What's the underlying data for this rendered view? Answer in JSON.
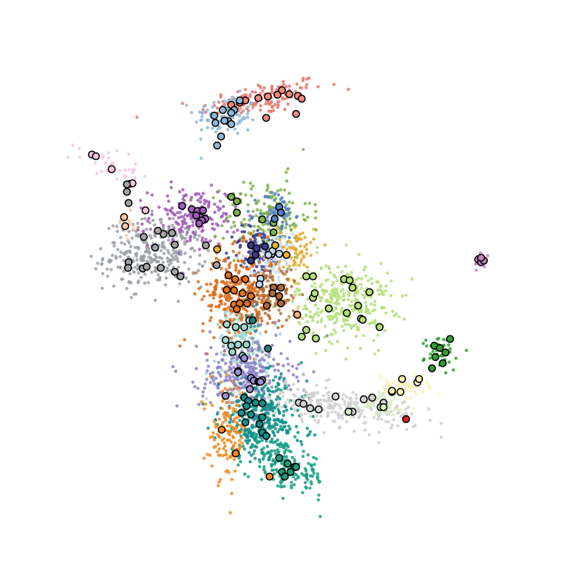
{
  "chart_data": {
    "type": "scatter",
    "title": "",
    "xlabel": "",
    "ylabel": "",
    "grid": false,
    "axes_visible": false,
    "legend": "none",
    "xlim": [
      0,
      100
    ],
    "ylim": [
      0,
      100
    ],
    "clusters": [
      {
        "color": "#e8756b",
        "label_color": "#f08a80",
        "center": [
          46.5,
          82.5
        ],
        "spread": [
          5.5,
          1.5
        ],
        "n": 140,
        "tilt": 0.18,
        "highlights": [
          [
            43.5,
            82.2
          ],
          [
            45.8,
            82.6
          ],
          [
            47.5,
            82.9
          ],
          [
            49.2,
            83.2
          ],
          [
            51.3,
            83.3
          ],
          [
            52.8,
            83.0
          ],
          [
            50.0,
            84.0
          ],
          [
            41.0,
            81.4
          ],
          [
            42.5,
            81.8
          ],
          [
            53.5,
            82.5
          ],
          [
            47.2,
            79.1
          ],
          [
            52.5,
            79.8
          ]
        ]
      },
      {
        "color": "#8fb7d9",
        "label_color": "#8fb7d9",
        "center": [
          40.0,
          79.5
        ],
        "spread": [
          2.8,
          1.8
        ],
        "n": 90,
        "tilt": 0.0,
        "highlights": [
          [
            38.0,
            79.5
          ],
          [
            40.5,
            78.5
          ],
          [
            41.5,
            80.5
          ],
          [
            39.5,
            80.5
          ],
          [
            42.5,
            82.2
          ],
          [
            38.2,
            78.2
          ],
          [
            41.0,
            78.0
          ],
          [
            39.2,
            75.8
          ],
          [
            38.5,
            74.2
          ],
          [
            41.0,
            80.0
          ],
          [
            39.8,
            78.6
          ]
        ]
      },
      {
        "color": "#f5c6e0",
        "label_color": "#f5c6e0",
        "center": [
          19.0,
          71.0
        ],
        "spread": [
          2.8,
          1.2
        ],
        "n": 35,
        "tilt": -0.3,
        "highlights": [
          [
            16.3,
            72.6
          ],
          [
            17.0,
            72.3
          ],
          [
            19.8,
            70.0
          ],
          [
            23.0,
            67.4
          ],
          [
            23.5,
            67.5
          ],
          [
            25.8,
            62.7
          ]
        ]
      },
      {
        "color": "#9aa0a6",
        "label_color": "#a3a3a3",
        "center": [
          27.5,
          55.0
        ],
        "spread": [
          4.5,
          3.0
        ],
        "n": 320,
        "tilt": 0.05,
        "highlights": [
          [
            22.5,
            66.0
          ],
          [
            22.5,
            67.3
          ],
          [
            22.8,
            64.0
          ],
          [
            28.0,
            59.1
          ],
          [
            29.0,
            58.5
          ],
          [
            30.5,
            58.7
          ],
          [
            31.0,
            56.6
          ],
          [
            25.5,
            58.0
          ],
          [
            27.5,
            56.1
          ],
          [
            22.8,
            53.5
          ],
          [
            22.7,
            52.5
          ],
          [
            25.3,
            52.4
          ],
          [
            26.0,
            52.7
          ],
          [
            28.5,
            52.5
          ],
          [
            31.0,
            51.8
          ],
          [
            32.0,
            51.0
          ],
          [
            36.5,
            56.5
          ],
          [
            38.4,
            53.0
          ]
        ]
      },
      {
        "color": "#f6c8a8",
        "label_color": "#f6c8a8",
        "center": [
          22.5,
          60.5
        ],
        "spread": [
          0.8,
          1.5
        ],
        "n": 14,
        "tilt": 0.0,
        "highlights": [
          [
            22.0,
            61.5
          ],
          [
            22.2,
            59.9
          ]
        ]
      },
      {
        "color": "#a05cb8",
        "label_color": "#a05cb8",
        "center": [
          34.5,
          61.5
        ],
        "spread": [
          4.0,
          2.6
        ],
        "n": 180,
        "tilt": 0.0,
        "highlights": [
          [
            32.3,
            63.5
          ],
          [
            34.0,
            62.9
          ],
          [
            35.0,
            62.6
          ],
          [
            36.0,
            62.7
          ],
          [
            35.5,
            61.5
          ],
          [
            34.8,
            61.8
          ],
          [
            36.4,
            61.2
          ],
          [
            35.8,
            60.9
          ],
          [
            35.3,
            60.4
          ]
        ]
      },
      {
        "color": "#7bb34a",
        "label_color": "#7bb34a",
        "center": [
          47.5,
          61.5
        ],
        "spread": [
          3.8,
          3.5
        ],
        "n": 170,
        "tilt": 0.0,
        "highlights": [
          [
            41.0,
            65.1
          ],
          [
            42.0,
            64.3
          ],
          [
            42.0,
            62.3
          ],
          [
            46.5,
            61.1
          ],
          [
            48.5,
            60.5
          ],
          [
            48.5,
            58.8
          ]
        ]
      },
      {
        "color": "#4d7fc4",
        "label_color": "#4d7fc4",
        "center": [
          49.0,
          62.0
        ],
        "spread": [
          1.6,
          2.2
        ],
        "n": 60,
        "tilt": 0.0,
        "highlights": [
          [
            49.5,
            63.3
          ],
          [
            49.8,
            62.3
          ],
          [
            48.7,
            61.2
          ]
        ]
      },
      {
        "color": "#3b3a8f",
        "label_color": "#3b3a8f",
        "center": [
          45.5,
          55.5
        ],
        "spread": [
          2.2,
          2.2
        ],
        "n": 90,
        "tilt": 0.0,
        "highlights": [
          [
            44.5,
            56.5
          ],
          [
            45.5,
            56.0
          ],
          [
            47.0,
            56.3
          ],
          [
            44.5,
            53.8
          ],
          [
            45.3,
            54.8
          ]
        ]
      },
      {
        "color": "#c7d9ef",
        "label_color": "#c7d9ef",
        "center": [
          48.5,
          54.5
        ],
        "spread": [
          2.4,
          2.0
        ],
        "n": 90,
        "tilt": 0.0,
        "highlights": [
          [
            48.2,
            55.0
          ],
          [
            49.5,
            55.0
          ],
          [
            48.3,
            55.5
          ],
          [
            47.6,
            54.8
          ],
          [
            46.2,
            50.6
          ],
          [
            46.0,
            49.6
          ]
        ]
      },
      {
        "color": "#e3a92a",
        "label_color": "#f0b429",
        "center": [
          52.5,
          55.5
        ],
        "spread": [
          1.6,
          2.5
        ],
        "n": 70,
        "tilt": 0.0,
        "highlights": [
          [
            50.8,
            54.8
          ],
          [
            38.5,
            55.8
          ],
          [
            48.8,
            56.5
          ]
        ]
      },
      {
        "color": "#dd6a15",
        "label_color": "#e2711c",
        "center": [
          42.5,
          47.5
        ],
        "spread": [
          3.3,
          4.2
        ],
        "n": 320,
        "tilt": 0.0,
        "highlights": [
          [
            40.5,
            51.2
          ],
          [
            41.7,
            50.5
          ],
          [
            43.5,
            50.5
          ],
          [
            41.5,
            48.5
          ],
          [
            43.0,
            48.0
          ],
          [
            40.2,
            48.6
          ],
          [
            44.5,
            47.5
          ],
          [
            41.5,
            46.0
          ],
          [
            42.5,
            46.2
          ],
          [
            43.8,
            46.2
          ],
          [
            42.0,
            45.2
          ]
        ]
      },
      {
        "color": "#b06a3a",
        "label_color": "#b06a3a",
        "center": [
          48.0,
          47.8
        ],
        "spread": [
          2.2,
          2.4
        ],
        "n": 110,
        "tilt": 0.0,
        "highlights": [
          [
            48.5,
            49.0
          ],
          [
            49.8,
            49.0
          ],
          [
            48.3,
            48.0
          ],
          [
            49.5,
            47.5
          ],
          [
            47.3,
            45.8
          ],
          [
            49.8,
            46.2
          ]
        ]
      },
      {
        "color": "#b5df7a",
        "label_color": "#b5df7a",
        "center": [
          61.0,
          46.5
        ],
        "spread": [
          4.2,
          3.5
        ],
        "n": 330,
        "tilt": 0.0,
        "highlights": [
          [
            54.3,
            51.0
          ],
          [
            55.5,
            51.0
          ],
          [
            61.0,
            50.5
          ],
          [
            62.0,
            50.3
          ],
          [
            62.5,
            49.0
          ],
          [
            65.5,
            48.2
          ],
          [
            55.5,
            47.2
          ],
          [
            55.8,
            48.0
          ],
          [
            58.3,
            45.3
          ],
          [
            61.5,
            44.5
          ],
          [
            63.5,
            45.8
          ],
          [
            64.0,
            43.5
          ],
          [
            64.3,
            43.3
          ],
          [
            67.3,
            42.0
          ],
          [
            54.3,
            41.5
          ],
          [
            53.5,
            40.3
          ],
          [
            56.0,
            40.0
          ],
          [
            52.7,
            44.2
          ]
        ]
      },
      {
        "color": "#f6c8a8",
        "label_color": "#f9b27a",
        "center": [
          52.8,
          44.2
        ],
        "spread": [
          0.6,
          0.6
        ],
        "n": 6,
        "tilt": 0.0,
        "highlights": [
          [
            52.7,
            44.2
          ]
        ]
      },
      {
        "color": "#9ed8cf",
        "label_color": "#9ed8cf",
        "center": [
          43.0,
          39.0
        ],
        "spread": [
          2.4,
          3.0
        ],
        "n": 150,
        "tilt": 0.0,
        "highlights": [
          [
            40.2,
            42.5
          ],
          [
            41.8,
            42.0
          ],
          [
            43.3,
            42.0
          ],
          [
            44.2,
            43.2
          ],
          [
            40.0,
            39.7
          ],
          [
            41.0,
            38.7
          ],
          [
            42.2,
            38.9
          ],
          [
            43.7,
            38.9
          ],
          [
            41.2,
            37.6
          ],
          [
            43.0,
            36.9
          ]
        ]
      },
      {
        "color": "#2a8a8a",
        "label_color": "#1f7f7f",
        "center": [
          45.0,
          43.5
        ],
        "spread": [
          0.8,
          2.2
        ],
        "n": 10,
        "tilt": 0.0,
        "highlights": [
          [
            44.8,
            43.2
          ],
          [
            47.5,
            38.2
          ]
        ]
      },
      {
        "color": "#8d80c7",
        "label_color": "#9d8fd1",
        "center": [
          43.5,
          33.5
        ],
        "spread": [
          4.0,
          3.2
        ],
        "n": 300,
        "tilt": 0.0,
        "highlights": [
          [
            43.3,
            36.5
          ],
          [
            42.2,
            34.2
          ],
          [
            42.2,
            34.0
          ],
          [
            44.5,
            33.0
          ],
          [
            45.0,
            32.5
          ],
          [
            45.8,
            32.3
          ],
          [
            46.0,
            32.3
          ],
          [
            46.5,
            32.6
          ],
          [
            46.2,
            32.3
          ],
          [
            44.3,
            31.0
          ],
          [
            40.0,
            29.8
          ]
        ]
      },
      {
        "color": "#0a8f85",
        "label_color": "#13918a",
        "center": [
          46.5,
          25.5
        ],
        "spread": [
          3.8,
          3.6
        ],
        "n": 360,
        "tilt": 0.0,
        "highlights": [
          [
            43.3,
            29.5
          ],
          [
            44.0,
            28.9
          ],
          [
            45.3,
            28.6
          ],
          [
            46.5,
            28.5
          ],
          [
            43.7,
            28.0
          ],
          [
            42.8,
            26.8
          ],
          [
            44.5,
            26.5
          ],
          [
            46.5,
            26.0
          ],
          [
            46.0,
            24.8
          ],
          [
            43.5,
            25.1
          ],
          [
            46.5,
            23.3
          ],
          [
            47.2,
            22.7
          ]
        ]
      },
      {
        "color": "#15a085",
        "label_color": "#1c9e77",
        "center": [
          51.0,
          17.0
        ],
        "spread": [
          3.5,
          2.0
        ],
        "n": 150,
        "tilt": -0.3,
        "highlights": [
          [
            49.5,
            18.8
          ],
          [
            51.0,
            17.8
          ],
          [
            52.2,
            17.2
          ],
          [
            52.5,
            17.2
          ],
          [
            51.5,
            16.3
          ],
          [
            50.0,
            16.3
          ],
          [
            50.5,
            15.5
          ]
        ]
      },
      {
        "color": "#f08a20",
        "label_color": "#f08a20",
        "center": [
          40.5,
          23.5
        ],
        "spread": [
          1.6,
          4.2
        ],
        "n": 140,
        "tilt": 0.0,
        "highlights": [
          [
            39.3,
            23.8
          ],
          [
            41.8,
            19.6
          ],
          [
            47.8,
            15.5
          ]
        ]
      },
      {
        "color": "#cfcfcf",
        "label_color": "#d3d3d3",
        "center": [
          60.0,
          28.0
        ],
        "spread": [
          7.0,
          1.6
        ],
        "n": 260,
        "tilt": -0.12,
        "highlights": [
          [
            53.0,
            28.6
          ],
          [
            53.8,
            28.4
          ],
          [
            55.0,
            27.6
          ],
          [
            56.5,
            27.4
          ],
          [
            59.5,
            29.7
          ],
          [
            62.5,
            27.0
          ],
          [
            64.5,
            29.2
          ],
          [
            66.0,
            29.5
          ],
          [
            68.0,
            28.6
          ]
        ]
      },
      {
        "color": "#d8f0c4",
        "label_color": "#d5efbf",
        "center": [
          67.0,
          28.5
        ],
        "spread": [
          2.0,
          1.0
        ],
        "n": 50,
        "tilt": 0.0,
        "highlights": [
          [
            61.8,
            27.0
          ],
          [
            67.5,
            27.8
          ],
          [
            68.0,
            27.8
          ],
          [
            69.5,
            30.5
          ]
        ]
      },
      {
        "color": "#fff3b8",
        "label_color": "#fff5b8",
        "center": [
          71.5,
          31.5
        ],
        "spread": [
          2.4,
          1.2
        ],
        "n": 50,
        "tilt": 0.0,
        "highlights": [
          [
            69.5,
            30.7
          ],
          [
            71.0,
            30.5
          ],
          [
            71.3,
            32.8
          ],
          [
            74.0,
            32.2
          ],
          [
            74.3,
            32.8
          ]
        ]
      },
      {
        "color": "#2ca02c",
        "label_color": "#2ca02c",
        "center": [
          78.5,
          37.5
        ],
        "spread": [
          1.6,
          1.6
        ],
        "n": 40,
        "tilt": 0.0,
        "highlights": [
          [
            77.0,
            38.7
          ],
          [
            78.0,
            38.3
          ],
          [
            79.0,
            37.5
          ],
          [
            79.8,
            39.9
          ],
          [
            77.2,
            36.7
          ],
          [
            78.5,
            35.6
          ],
          [
            76.6,
            34.7
          ]
        ]
      },
      {
        "color": "#d62728",
        "label_color": "#d62728",
        "center": [
          72.0,
          25.8
        ],
        "spread": [
          0.2,
          0.2
        ],
        "n": 3,
        "tilt": 0.0,
        "highlights": [
          [
            72.0,
            25.7
          ]
        ]
      },
      {
        "color": "#c682bb",
        "label_color": "#c682bb",
        "center": [
          85.2,
          53.7
        ],
        "spread": [
          0.6,
          0.6
        ],
        "n": 18,
        "tilt": 0.0,
        "highlights": [
          [
            84.8,
            54.0
          ],
          [
            85.3,
            53.5
          ],
          [
            85.8,
            53.8
          ],
          [
            85.3,
            54.3
          ]
        ]
      }
    ]
  }
}
